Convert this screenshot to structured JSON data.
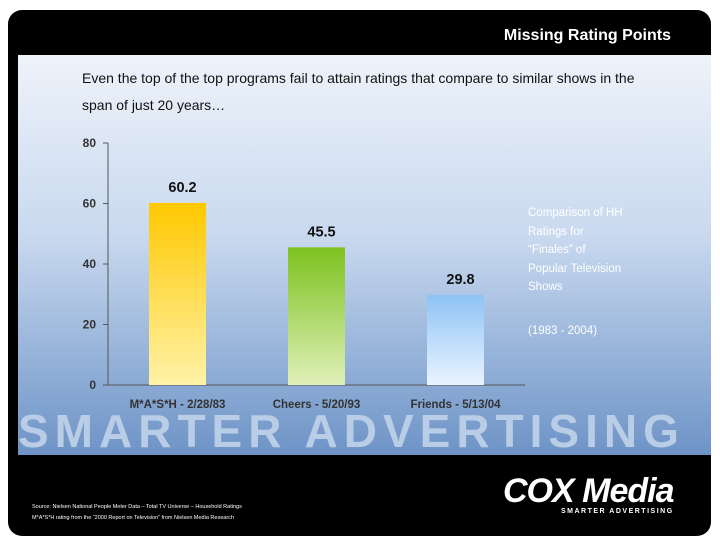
{
  "slide": {
    "title": "Missing Rating Points",
    "subtitle": "Even the top of the top programs fail to attain ratings that compare to similar shows in the span of just 20 years…",
    "side_note": "Comparison of HH Ratings for “Finales” of Popular Television Shows",
    "side_note_years": "(1983 - 2004)",
    "watermark": "SMARTER ADVERTISING",
    "source_line1": "Source: Nielsen National People Meter Data – Total TV Universe – Household Ratings",
    "source_line2": "M*A*S*H rating from the “2000 Report on Television” from Nielsen Media Research",
    "logo_text": "COX Media",
    "logo_tagline": "SMARTER ADVERTISING"
  },
  "chart_data": {
    "type": "bar",
    "categories": [
      "M*A*S*H - 2/28/83",
      "Cheers - 5/20/93",
      "Friends - 5/13/04"
    ],
    "values": [
      60.2,
      45.5,
      29.8
    ],
    "value_labels": [
      "60.2",
      "45.5",
      "29.8"
    ],
    "ylim": [
      0,
      80
    ],
    "yticks": [
      0,
      20,
      40,
      60,
      80
    ],
    "ylabel": "",
    "xlabel": "",
    "colors": [
      "#ffcc00",
      "#8cc63f",
      "#9ecbf4"
    ]
  }
}
